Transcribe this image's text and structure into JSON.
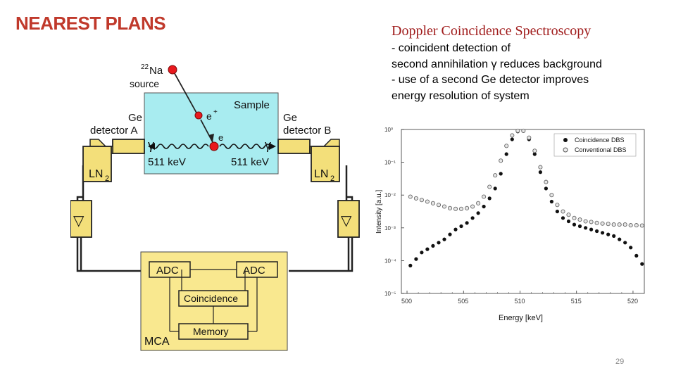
{
  "slide": {
    "title": "NEAREST PLANS",
    "subtitle": "Doppler Coincidence Spectroscopy",
    "bullets": [
      "- coincident detection of",
      "second annihilation γ reduces background",
      "- use of a second Ge detector improves",
      "energy resolution of system"
    ],
    "page_number": "29"
  },
  "diagram": {
    "source_mass": "22",
    "source_element": "Na",
    "source_word": "source",
    "sample_label": "Sample",
    "positron_label": "e",
    "positron_sup": "+",
    "electron_label": "e",
    "gamma_left": "γ",
    "gamma_right": "γ",
    "energy_left": "511 keV",
    "energy_right": "511 keV",
    "detector_a": [
      "Ge",
      "detector A"
    ],
    "detector_b": [
      "Ge",
      "detector B"
    ],
    "ln2_left": "LN",
    "ln2_right": "LN",
    "ln2_sub": "2",
    "amp_symbol": "▽",
    "adc_left": "ADC",
    "adc_right": "ADC",
    "coincidence": "Coincidence",
    "memory": "Memory",
    "mca": "MCA",
    "colors": {
      "sample": "#a8ecf0",
      "detector": "#f3df7a",
      "electronics": "#f9e88f",
      "particle": "#e8191e"
    }
  },
  "chart_data": {
    "type": "scatter",
    "xlabel": "Energy [keV]",
    "ylabel": "Intensity [a.u.]",
    "x_ticks": [
      "500",
      "505",
      "510",
      "515",
      "520"
    ],
    "y_ticks": [
      "10⁰",
      "10⁻¹",
      "10⁻²",
      "10⁻³",
      "10⁻⁴",
      "10⁻⁵"
    ],
    "xlim": [
      499.5,
      521.0
    ],
    "ylim_log10": [
      -5,
      0
    ],
    "log_y": true,
    "grid": false,
    "legend_position": "top-right",
    "series": [
      {
        "name": "Coincidence DBS",
        "marker": "filled-circle",
        "color": "#111111",
        "points": [
          [
            500.3,
            -4.15
          ],
          [
            500.8,
            -3.95
          ],
          [
            501.3,
            -3.75
          ],
          [
            501.8,
            -3.65
          ],
          [
            502.3,
            -3.55
          ],
          [
            502.8,
            -3.45
          ],
          [
            503.3,
            -3.35
          ],
          [
            503.8,
            -3.2
          ],
          [
            504.3,
            -3.05
          ],
          [
            504.8,
            -2.95
          ],
          [
            505.3,
            -2.85
          ],
          [
            505.8,
            -2.7
          ],
          [
            506.3,
            -2.55
          ],
          [
            506.8,
            -2.35
          ],
          [
            507.3,
            -2.1
          ],
          [
            507.8,
            -1.8
          ],
          [
            508.3,
            -1.35
          ],
          [
            508.8,
            -0.75
          ],
          [
            509.3,
            -0.3
          ],
          [
            509.8,
            -0.06
          ],
          [
            510.3,
            -0.05
          ],
          [
            510.8,
            -0.3
          ],
          [
            511.3,
            -0.75
          ],
          [
            511.8,
            -1.3
          ],
          [
            512.3,
            -1.8
          ],
          [
            512.8,
            -2.2
          ],
          [
            513.3,
            -2.5
          ],
          [
            513.8,
            -2.7
          ],
          [
            514.3,
            -2.8
          ],
          [
            514.8,
            -2.9
          ],
          [
            515.3,
            -2.95
          ],
          [
            515.8,
            -3.0
          ],
          [
            516.3,
            -3.05
          ],
          [
            516.8,
            -3.1
          ],
          [
            517.3,
            -3.15
          ],
          [
            517.8,
            -3.2
          ],
          [
            518.3,
            -3.25
          ],
          [
            518.8,
            -3.35
          ],
          [
            519.3,
            -3.45
          ],
          [
            519.8,
            -3.6
          ],
          [
            520.3,
            -3.85
          ],
          [
            520.8,
            -4.1
          ]
        ]
      },
      {
        "name": "Conventional DBS",
        "marker": "open-circle",
        "color": "#666666",
        "points": [
          [
            500.3,
            -2.05
          ],
          [
            500.8,
            -2.1
          ],
          [
            501.3,
            -2.15
          ],
          [
            501.8,
            -2.2
          ],
          [
            502.3,
            -2.25
          ],
          [
            502.8,
            -2.3
          ],
          [
            503.3,
            -2.35
          ],
          [
            503.8,
            -2.4
          ],
          [
            504.3,
            -2.42
          ],
          [
            504.8,
            -2.42
          ],
          [
            505.3,
            -2.4
          ],
          [
            505.8,
            -2.35
          ],
          [
            506.3,
            -2.25
          ],
          [
            506.8,
            -2.05
          ],
          [
            507.3,
            -1.75
          ],
          [
            507.8,
            -1.4
          ],
          [
            508.3,
            -0.95
          ],
          [
            508.8,
            -0.5
          ],
          [
            509.3,
            -0.18
          ],
          [
            509.8,
            -0.04
          ],
          [
            510.3,
            -0.04
          ],
          [
            510.8,
            -0.25
          ],
          [
            511.3,
            -0.65
          ],
          [
            511.8,
            -1.15
          ],
          [
            512.3,
            -1.6
          ],
          [
            512.8,
            -2.0
          ],
          [
            513.3,
            -2.3
          ],
          [
            513.8,
            -2.5
          ],
          [
            514.3,
            -2.6
          ],
          [
            514.8,
            -2.7
          ],
          [
            515.3,
            -2.75
          ],
          [
            515.8,
            -2.8
          ],
          [
            516.3,
            -2.82
          ],
          [
            516.8,
            -2.85
          ],
          [
            517.3,
            -2.87
          ],
          [
            517.8,
            -2.88
          ],
          [
            518.3,
            -2.9
          ],
          [
            518.8,
            -2.9
          ],
          [
            519.3,
            -2.9
          ],
          [
            519.8,
            -2.92
          ],
          [
            520.3,
            -2.92
          ],
          [
            520.8,
            -2.93
          ]
        ]
      }
    ]
  }
}
